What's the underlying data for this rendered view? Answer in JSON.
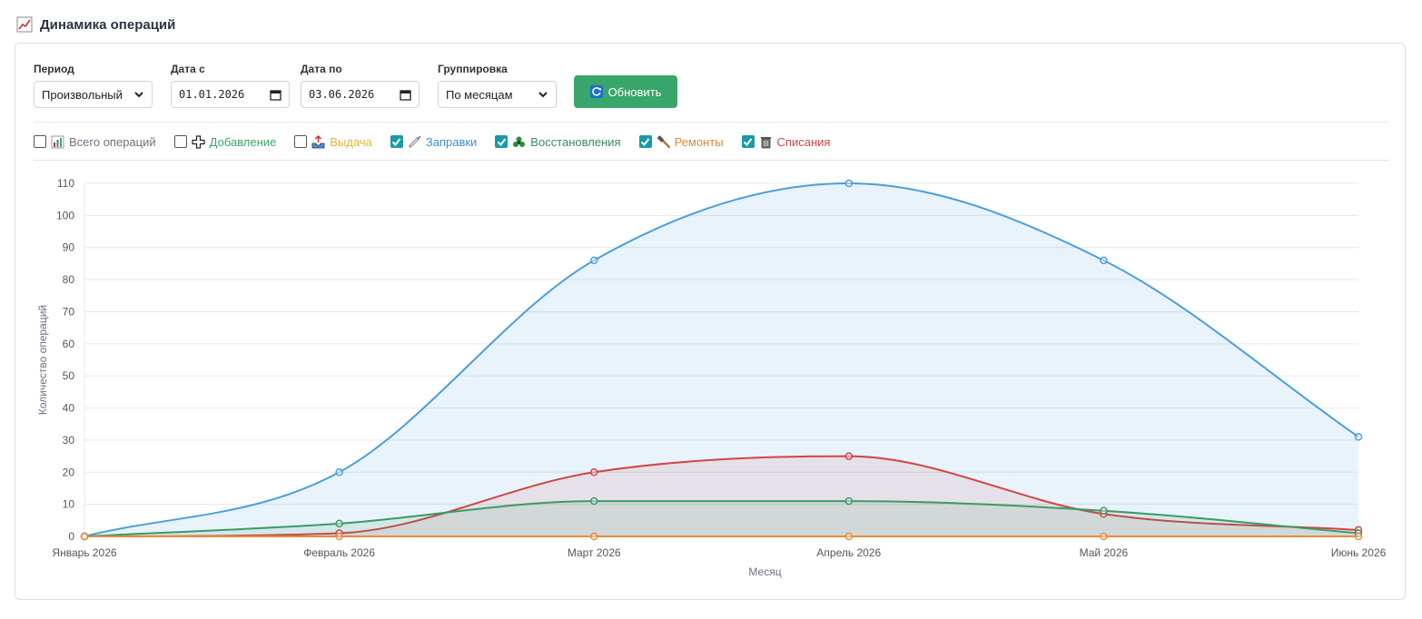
{
  "header": {
    "title": "Динамика операций",
    "icon": "chart-up-icon"
  },
  "filters_form": {
    "period": {
      "label": "Период",
      "value": "Произвольный"
    },
    "date_from": {
      "label": "Дата с",
      "value": "01.01.2026"
    },
    "date_to": {
      "label": "Дата по",
      "value": "03.06.2026"
    },
    "grouping": {
      "label": "Группировка",
      "value": "По месяцам"
    },
    "refresh_button": {
      "label": "Обновить",
      "color": "#3aa66b"
    }
  },
  "series_toggles": [
    {
      "label": "Всего операций",
      "checked": false,
      "color": "#6b7280",
      "icon": "bar-chart-icon"
    },
    {
      "label": "Добавление",
      "checked": false,
      "color": "#3aa66b",
      "icon": "plus-icon"
    },
    {
      "label": "Выдача",
      "checked": false,
      "color": "#e0b43a",
      "icon": "outbox-icon"
    },
    {
      "label": "Заправки",
      "checked": true,
      "color": "#3d8fd1",
      "icon": "syringe-icon"
    },
    {
      "label": "Восстановления",
      "checked": true,
      "color": "#3a8a5c",
      "icon": "recycle-icon"
    },
    {
      "label": "Ремонты",
      "checked": true,
      "color": "#e0843a",
      "icon": "hammer-icon"
    },
    {
      "label": "Списания",
      "checked": true,
      "color": "#d04545",
      "icon": "trash-icon"
    }
  ],
  "chart_data": {
    "type": "area",
    "categories": [
      "Январь 2026",
      "Февраль 2026",
      "Март 2026",
      "Апрель 2026",
      "Май 2026",
      "Июнь 2026"
    ],
    "xlabel": "Месяц",
    "ylabel": "Количество операций",
    "ylim": [
      0,
      110
    ],
    "yticks": [
      0,
      10,
      20,
      30,
      40,
      50,
      60,
      70,
      80,
      90,
      100,
      110
    ],
    "grid": true,
    "series": [
      {
        "name": "Заправки",
        "color": "#4a9ede",
        "fill": "rgba(74,158,222,0.12)",
        "values": [
          0,
          20,
          86,
          110,
          86,
          31
        ]
      },
      {
        "name": "Списания",
        "color": "#d04545",
        "fill": "rgba(208,69,69,0.10)",
        "values": [
          0,
          1,
          20,
          25,
          7,
          2
        ]
      },
      {
        "name": "Восстановления",
        "color": "#3a9a66",
        "fill": "rgba(58,154,102,0.12)",
        "values": [
          0,
          4,
          11,
          11,
          8,
          1
        ]
      },
      {
        "name": "Ремонты",
        "color": "#e88a3a",
        "fill": "rgba(232,138,58,0.06)",
        "values": [
          0,
          0,
          0,
          0,
          0,
          0
        ]
      }
    ]
  }
}
